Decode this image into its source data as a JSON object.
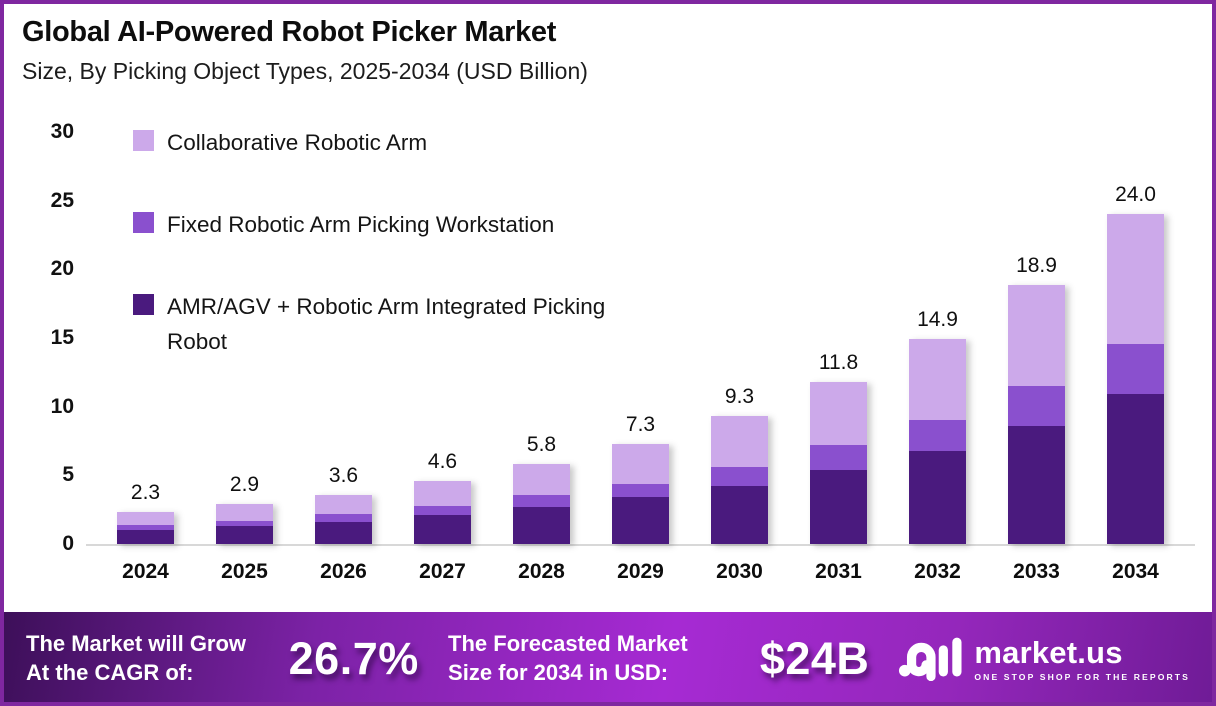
{
  "header": {
    "title": "Global AI-Powered Robot Picker Market",
    "subtitle": "Size, By Picking Object Types, 2025-2034 (USD Billion)"
  },
  "chart_data": {
    "type": "bar",
    "stacked": true,
    "title": "Global AI-Powered Robot Picker Market Size, By Picking Object Types, 2025-2034 (USD Billion)",
    "categories": [
      "2024",
      "2025",
      "2026",
      "2027",
      "2028",
      "2029",
      "2030",
      "2031",
      "2032",
      "2033",
      "2034"
    ],
    "series": [
      {
        "key": "amr-agv-integrated",
        "name": "AMR/AGV + Robotic Arm Integrated Picking Robot",
        "color": "#4A1A7E",
        "values": [
          1.0,
          1.3,
          1.6,
          2.1,
          2.7,
          3.4,
          4.2,
          5.4,
          6.8,
          8.6,
          10.9
        ]
      },
      {
        "key": "fixed-workstation",
        "name": "Fixed Robotic Arm Picking Workstation",
        "color": "#8A50CE",
        "values": [
          0.4,
          0.4,
          0.6,
          0.7,
          0.9,
          1.0,
          1.4,
          1.8,
          2.2,
          2.9,
          3.7
        ]
      },
      {
        "key": "collaborative-arm",
        "name": "Collaborative Robotic Arm",
        "color": "#CCA9EA",
        "values": [
          0.9,
          1.2,
          1.4,
          1.8,
          2.2,
          2.9,
          3.7,
          4.6,
          5.9,
          7.4,
          9.4
        ]
      }
    ],
    "totals": [
      "2.3",
      "2.9",
      "3.6",
      "4.6",
      "5.8",
      "7.3",
      "9.3",
      "11.8",
      "14.9",
      "18.9",
      "24.0"
    ],
    "ylabel": "",
    "xlabel": "",
    "ylim": [
      0,
      30
    ],
    "yticks": [
      0,
      5,
      10,
      15,
      20,
      25,
      30
    ],
    "grid": false,
    "legend_position": "inside-top-left",
    "value_labels": "total above each stacked bar"
  },
  "legend": {
    "items": [
      {
        "label": "Collaborative Robotic Arm",
        "color": "#CCA9EA"
      },
      {
        "label": "Fixed Robotic Arm Picking Workstation",
        "color": "#8A50CE"
      },
      {
        "label": "AMR/AGV + Robotic Arm Integrated Picking\nRobot",
        "color": "#4A1A7E"
      }
    ]
  },
  "footer": {
    "cagr_label": "The Market will Grow\nAt the CAGR of:",
    "cagr_value": "26.7%",
    "forecast_label": "The Forecasted Market\nSize for 2034 in USD:",
    "forecast_value": "$24B",
    "brand": {
      "name": "market.us",
      "tagline": "ONE STOP SHOP FOR THE REPORTS"
    }
  },
  "colors": {
    "frame_border": "#7F27A0",
    "background": "#FFFFFF",
    "axis_line": "#D8D8D8",
    "text": "#111111",
    "footer_text": "#FFFFFF",
    "footer_gradient_start": "#3C0F58",
    "footer_gradient_mid": "#A62AD3",
    "footer_gradient_end": "#6F1B96"
  }
}
